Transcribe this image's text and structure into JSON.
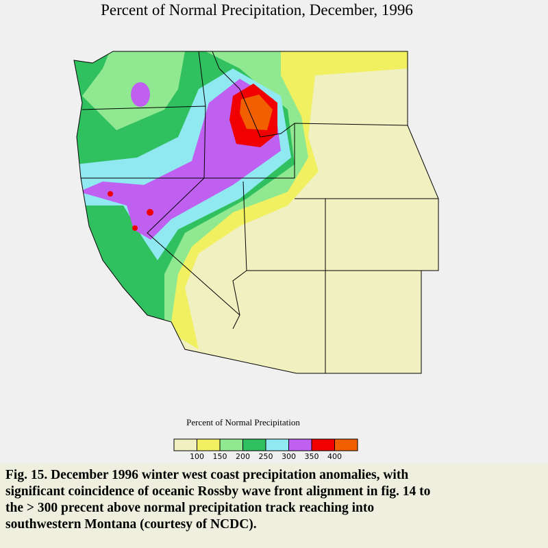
{
  "header": {
    "title": "Percent of Normal Precipitation, December, 1996"
  },
  "legend": {
    "title": "Percent of Normal Precipitation",
    "colors": [
      "#f0f0c0",
      "#f0f060",
      "#90e890",
      "#30c060",
      "#90e8f0",
      "#c060f0",
      "#f00000",
      "#f06000"
    ],
    "ticks": [
      100,
      150,
      200,
      250,
      300,
      350,
      400
    ]
  },
  "caption": {
    "lines": [
      "Fig. 15.  December 1996 winter west coast precipitation anomalies, with",
      "significant coincidence of oceanic Rossby wave front alignment in fig. 14 to",
      "the > 300 precent above normal precipitation track reaching into",
      "southwestern Montana (courtesy of NCDC)."
    ]
  }
}
